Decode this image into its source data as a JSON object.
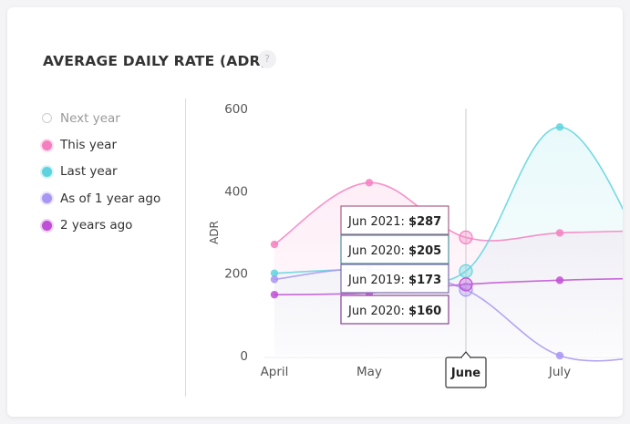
{
  "title": "AVERAGE DAILY RATE (ADR)",
  "help_label": "?",
  "legend": [
    {
      "label": "Next year",
      "color": "#cccccc",
      "hollow": true
    },
    {
      "label": "This year",
      "color": "#f47fbf",
      "hollow": false
    },
    {
      "label": "Last year",
      "color": "#5ed3de",
      "hollow": false
    },
    {
      "label": "As of 1 year ago",
      "color": "#a995f2",
      "hollow": false
    },
    {
      "label": "2 years ago",
      "color": "#bf4fd4",
      "hollow": false
    }
  ],
  "chart_data": {
    "type": "line",
    "ylabel": "ADR",
    "xlabel": "",
    "categories": [
      "April",
      "May",
      "June",
      "July"
    ],
    "ylim": [
      0,
      600
    ],
    "yticks": [
      0,
      200,
      400,
      600
    ],
    "highlight_category": "June",
    "series": [
      {
        "name": "This year",
        "color": "#f47fbf",
        "values": [
          270,
          420,
          287,
          298
        ],
        "fill": true
      },
      {
        "name": "Last year",
        "color": "#5ed3de",
        "values": [
          200,
          210,
          205,
          555
        ],
        "fill": true
      },
      {
        "name": "As of 1 year ago",
        "color": "#a995f2",
        "values": [
          185,
          210,
          160,
          0
        ],
        "fill": false
      },
      {
        "name": "2 years ago",
        "color": "#bf4fd4",
        "values": [
          148,
          152,
          173,
          183
        ],
        "fill": false
      }
    ],
    "tooltips": [
      {
        "label": "Jun 2021:",
        "value": "$287"
      },
      {
        "label": "Jun 2020:",
        "value": "$205"
      },
      {
        "label": "Jun 2019:",
        "value": "$173"
      },
      {
        "label": "Jun 2020:",
        "value": "$160"
      }
    ]
  }
}
